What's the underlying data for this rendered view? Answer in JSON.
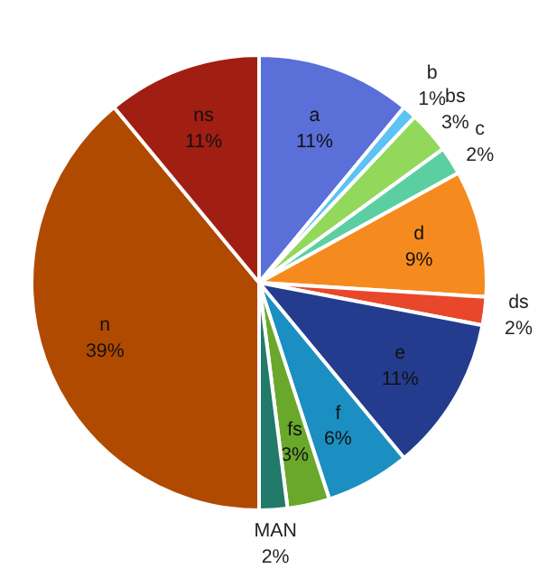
{
  "chart_data": {
    "type": "pie",
    "categories": [
      "a",
      "b",
      "bs",
      "c",
      "d",
      "ds",
      "e",
      "f",
      "fs",
      "MAN",
      "n",
      "ns"
    ],
    "values": [
      11,
      1,
      3,
      2,
      9,
      2,
      11,
      6,
      3,
      2,
      39,
      11
    ],
    "value_labels": [
      "11%",
      "1%",
      "3%",
      "2%",
      "9%",
      "2%",
      "11%",
      "6%",
      "3%",
      "2%",
      "39%",
      "11%"
    ],
    "colors": [
      "#5a6fd8",
      "#5cc3f2",
      "#92d85a",
      "#5ccfa2",
      "#f58b1f",
      "#e8472b",
      "#233c8e",
      "#1c8fc2",
      "#6aa82c",
      "#217a6a",
      "#b04a00",
      "#a11e12"
    ]
  }
}
